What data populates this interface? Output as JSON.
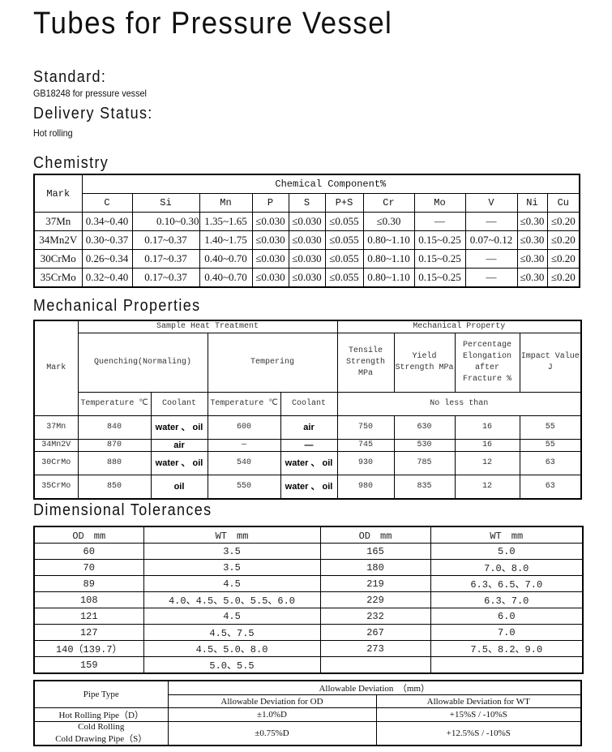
{
  "title": "Tubes for Pressure Vessel",
  "standard": {
    "label": "Standard:",
    "value": "GB18248 for pressure vessel"
  },
  "delivery": {
    "label": "Delivery Status:",
    "value": "Hot rolling"
  },
  "chemistry": {
    "title": "Chemistry",
    "mark_header": "Mark",
    "group_header": "Chemical Component%",
    "columns": [
      "C",
      "Si",
      "Mn",
      "P",
      "S",
      "P+S",
      "Cr",
      "Mo",
      "V",
      "Ni",
      "Cu"
    ],
    "rows": [
      [
        "37Mn",
        "0.34~0.40",
        "0.10~0.30",
        "1.35~1.65",
        "≤0.030",
        "≤0.030",
        "≤0.055",
        "≤0.30",
        "—",
        "—",
        "≤0.30",
        "≤0.20"
      ],
      [
        "34Mn2V",
        "0.30~0.37",
        "0.17~0.37",
        "1.40~1.75",
        "≤0.030",
        "≤0.030",
        "≤0.055",
        "0.80~1.10",
        "0.15~0.25",
        "0.07~0.12",
        "≤0.30",
        "≤0.20"
      ],
      [
        "30CrMo",
        "0.26~0.34",
        "0.17~0.37",
        "0.40~0.70",
        "≤0.030",
        "≤0.030",
        "≤0.055",
        "0.80~1.10",
        "0.15~0.25",
        "—",
        "≤0.30",
        "≤0.20"
      ],
      [
        "35CrMo",
        "0.32~0.40",
        "0.17~0.37",
        "0.40~0.70",
        "≤0.030",
        "≤0.030",
        "≤0.055",
        "0.80~1.10",
        "0.15~0.25",
        "—",
        "≤0.30",
        "≤0.20"
      ]
    ]
  },
  "mechanical": {
    "title": "Mechanical Properties",
    "mark_header": "Mark",
    "heat_header": "Sample Heat Treatment",
    "prop_header": "Mechanical Property",
    "quenching": "Quenching(Normaling)",
    "tempering": "Tempering",
    "props": [
      "Tensile Strength MPa",
      "Yield Strength MPa",
      "Percentage Elongation after Fracture %",
      "Impact Value J"
    ],
    "sub": [
      "Temperature ℃",
      "Coolant",
      "Temperature ℃",
      "Coolant"
    ],
    "no_less": "No less than",
    "rows": [
      [
        "37Mn",
        "840",
        "water 、 oil",
        "600",
        "air",
        "750",
        "630",
        "16",
        "55"
      ],
      [
        "34Mn2V",
        "870",
        "air",
        "—",
        "—",
        "745",
        "530",
        "16",
        "55"
      ],
      [
        "30CrMo",
        "880",
        "water 、 oil",
        "540",
        "water 、 oil",
        "930",
        "785",
        "12",
        "63"
      ],
      [
        "35CrMo",
        "850",
        "oil",
        "550",
        "water 、 oil",
        "980",
        "835",
        "12",
        "63"
      ]
    ]
  },
  "dimensional": {
    "title": "Dimensional Tolerances",
    "headers": [
      "OD　mm",
      "WT　mm",
      "OD　mm",
      "WT　mm"
    ],
    "rows": [
      [
        "60",
        "3.5",
        "165",
        "5.0"
      ],
      [
        "70",
        "3.5",
        "180",
        "7.0、8.0"
      ],
      [
        "89",
        "4.5",
        "219",
        "6.3、6.5、7.0"
      ],
      [
        "108",
        "4.0、4.5、5.0、5.5、6.0",
        "229",
        "6.3、7.0"
      ],
      [
        "121",
        "4.5",
        "232",
        "6.0"
      ],
      [
        "127",
        "4.5、7.5",
        "267",
        "7.0"
      ],
      [
        "140（139.7）",
        "4.5、5.0、8.0",
        "273",
        "7.5、8.2、9.0"
      ],
      [
        "159",
        "5.0、5.5",
        "",
        ""
      ]
    ]
  },
  "deviation": {
    "pipe_type": "Pipe Type",
    "group": "Allowable Deviation　（mm）",
    "od": "Allowable Deviation for OD",
    "wt": "Allowable Deviation for WT",
    "rows": [
      [
        "Hot Rolling Pipe（D）",
        "±1.0%D",
        "+15%S / -10%S"
      ],
      [
        "Cold Rolling\nCold Drawing Pipe（S）",
        "±0.75%D",
        "+12.5%S / -10%S"
      ]
    ]
  }
}
